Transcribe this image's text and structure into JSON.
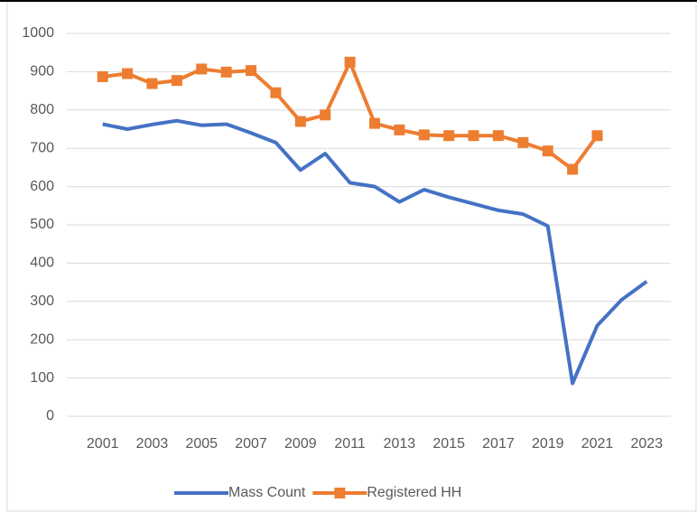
{
  "chart_data": {
    "type": "line",
    "categories": [
      "2001",
      null,
      "2003",
      null,
      "2005",
      null,
      "2007",
      null,
      "2009",
      null,
      "2011",
      null,
      "2013",
      null,
      "2015",
      null,
      "2017",
      null,
      "2019",
      null,
      "2021",
      null,
      "2023"
    ],
    "series": [
      {
        "name": "Mass Count",
        "color": "#4472c4",
        "marker": "none",
        "values": [
          763,
          750,
          762,
          772,
          760,
          763,
          740,
          715,
          643,
          686,
          610,
          600,
          560,
          592,
          572,
          555,
          538,
          528,
          497,
          86,
          237,
          305,
          352
        ]
      },
      {
        "name": "Registered HH",
        "color": "#ed7d31",
        "marker": "square",
        "values": [
          887,
          895,
          869,
          877,
          907,
          899,
          903,
          845,
          770,
          787,
          925,
          765,
          748,
          735,
          733,
          733,
          733,
          715,
          693,
          645,
          733,
          null,
          null
        ]
      }
    ],
    "ylim": [
      0,
      1000
    ],
    "yticks": [
      0,
      100,
      200,
      300,
      400,
      500,
      600,
      700,
      800,
      900,
      1000
    ],
    "grid": true,
    "legend": "bottom"
  }
}
